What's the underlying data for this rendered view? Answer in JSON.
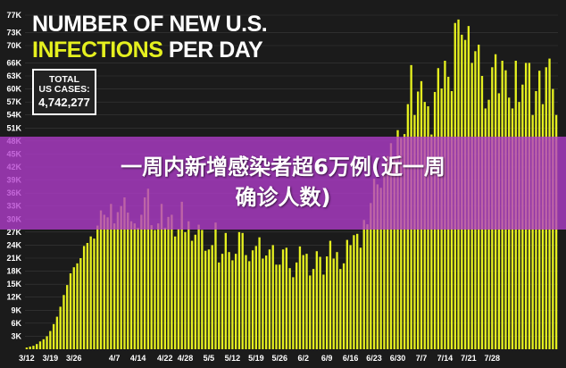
{
  "header": {
    "title_line1": "NUMBER OF NEW U.S.",
    "title_line2_highlight": "INFECTIONS",
    "title_line2_rest": "PER DAY"
  },
  "total_box": {
    "label_line1": "TOTAL",
    "label_line2": "US CASES:",
    "value": "4,742,277"
  },
  "caption": {
    "line1": "一周内新增感染者超6万例(近一周",
    "line2": "确诊人数)"
  },
  "colors": {
    "bar": "#e5f01f",
    "background": "#1b1b1b",
    "banner": "#b23ccd",
    "grid": "#3a3a3a"
  },
  "chart_data": {
    "type": "bar",
    "title": "NUMBER OF NEW U.S. INFECTIONS PER DAY",
    "xlabel": "",
    "ylabel": "",
    "ylim": [
      0,
      77000
    ],
    "y_ticks": [
      "3K",
      "6K",
      "9K",
      "12K",
      "15K",
      "18K",
      "21K",
      "24K",
      "27K",
      "30K",
      "33K",
      "36K",
      "39K",
      "42K",
      "45K",
      "48K",
      "51K",
      "54K",
      "57K",
      "60K",
      "63K",
      "66K",
      "70K",
      "73K",
      "77K"
    ],
    "y_tick_values": [
      3000,
      6000,
      9000,
      12000,
      15000,
      18000,
      21000,
      24000,
      27000,
      30000,
      33000,
      36000,
      39000,
      42000,
      45000,
      48000,
      51000,
      54000,
      57000,
      60000,
      63000,
      66000,
      70000,
      73000,
      77000
    ],
    "x_tick_labels": [
      "3/12",
      "3/19",
      "3/26",
      "4/7",
      "4/14",
      "4/22",
      "4/28",
      "5/5",
      "5/12",
      "5/19",
      "5/26",
      "6/2",
      "6/9",
      "6/16",
      "6/23",
      "6/30",
      "7/7",
      "7/14",
      "7/21",
      "7/28"
    ],
    "x_tick_indices": [
      0,
      7,
      14,
      26,
      33,
      41,
      47,
      54,
      61,
      68,
      75,
      82,
      89,
      96,
      103,
      110,
      117,
      124,
      131,
      138
    ],
    "grid": true,
    "values": [
      400,
      600,
      800,
      1200,
      1800,
      2300,
      3000,
      4200,
      5800,
      7500,
      9800,
      12500,
      14800,
      17500,
      18900,
      19800,
      21000,
      23800,
      24500,
      26000,
      25500,
      28500,
      32000,
      31000,
      30400,
      33500,
      29000,
      31600,
      33000,
      35000,
      31500,
      29500,
      29000,
      28000,
      31000,
      35000,
      37000,
      28600,
      27500,
      29000,
      33500,
      28000,
      30500,
      31000,
      26000,
      27700,
      34000,
      27000,
      29500,
      25000,
      26400,
      28700,
      27500,
      22700,
      23000,
      24000,
      29200,
      20000,
      22000,
      26800,
      22400,
      20500,
      22000,
      27000,
      26800,
      21700,
      20300,
      22800,
      23800,
      25800,
      20900,
      21600,
      23000,
      24000,
      19500,
      19500,
      23000,
      23400,
      18700,
      16600,
      20000,
      23700,
      21700,
      22000,
      17000,
      18500,
      22600,
      21300,
      17200,
      21400,
      25000,
      20900,
      22400,
      18500,
      19800,
      25200,
      24000,
      26300,
      26600,
      23400,
      29800,
      28800,
      33700,
      39300,
      38000,
      37200,
      40300,
      44500,
      47500,
      44400,
      50500,
      48700,
      49600,
      56500,
      65500,
      54000,
      59400,
      61800,
      57000,
      56000,
      49500,
      59300,
      64800,
      60100,
      66500,
      62800,
      59500,
      75200,
      76000,
      72500,
      71300,
      74500,
      66000,
      68700,
      70200,
      63000,
      55500,
      57500,
      65000,
      68000,
      59000,
      66500,
      64300,
      58000,
      55500,
      66500,
      57000,
      61000,
      66000,
      66000,
      54000,
      59500,
      64200,
      56500,
      65000,
      67000,
      60000,
      54000
    ]
  }
}
